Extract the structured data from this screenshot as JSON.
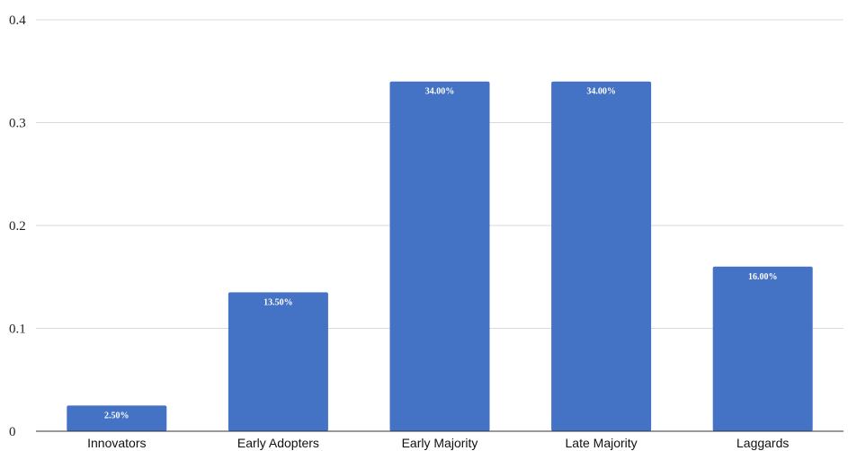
{
  "chart_data": {
    "type": "bar",
    "title": "",
    "xlabel": "",
    "ylabel": "",
    "categories": [
      "Innovators",
      "Early Adopters",
      "Early Majority",
      "Late Majority",
      "Laggards"
    ],
    "values": [
      0.025,
      0.135,
      0.34,
      0.34,
      0.16
    ],
    "data_labels": [
      "2.50%",
      "13.50%",
      "34.00%",
      "34.00%",
      "16.00%"
    ],
    "ylim": [
      0,
      0.4
    ],
    "yticks": [
      "0",
      "0.1",
      "0.2",
      "0.3",
      "0.4"
    ],
    "ytick_values": [
      0,
      0.1,
      0.2,
      0.3,
      0.4
    ],
    "grid": true,
    "legend": "none",
    "colors": {
      "bar": "#4472c4"
    }
  }
}
